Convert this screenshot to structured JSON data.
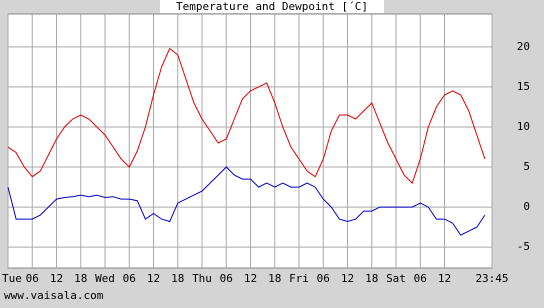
{
  "chart_data": {
    "type": "line",
    "title": "Temperature and Dewpoint [´C]",
    "source": "www.vaisala.com",
    "x": [
      0,
      2,
      4,
      6,
      8,
      10,
      12,
      14,
      16,
      18,
      20,
      22,
      24,
      26,
      28,
      30,
      32,
      34,
      36,
      38,
      40,
      42,
      44,
      46,
      48,
      50,
      52,
      54,
      56,
      58,
      60,
      62,
      64,
      66,
      68,
      70,
      72,
      74,
      76,
      78,
      80,
      82,
      84,
      86,
      88,
      90,
      92,
      94,
      96,
      98,
      100,
      102,
      104,
      106,
      108,
      110,
      112,
      114,
      116,
      118
    ],
    "series": [
      {
        "name": "Temperature",
        "color": "#e00000",
        "values": [
          7.5,
          6.8,
          5,
          3.8,
          4.5,
          6.5,
          8.5,
          10,
          11,
          11.5,
          11,
          10,
          9,
          7.5,
          6,
          5,
          7,
          10,
          14,
          17.5,
          19.8,
          19,
          16,
          13,
          11,
          9.5,
          8,
          8.5,
          11,
          13.5,
          14.5,
          15,
          15.5,
          13,
          10,
          7.5,
          6,
          4.5,
          3.8,
          6,
          9.5,
          11.5,
          11.5,
          11,
          12,
          13,
          10.5,
          8,
          6,
          4,
          3,
          6,
          10,
          12.5,
          14,
          14.5,
          14,
          12,
          9,
          6
        ]
      },
      {
        "name": "Dewpoint",
        "color": "#0000c8",
        "values": [
          2.5,
          -1.5,
          -1.5,
          -1.5,
          -1,
          0,
          1,
          1.2,
          1.3,
          1.5,
          1.3,
          1.5,
          1.2,
          1.3,
          1,
          1,
          0.8,
          -1.5,
          -0.8,
          -1.5,
          -1.8,
          0.5,
          1,
          1.5,
          2,
          3,
          4,
          5,
          4,
          3.5,
          3.5,
          2.5,
          3,
          2.5,
          3,
          2.5,
          2.5,
          3,
          2.5,
          1,
          0,
          -1.5,
          -1.8,
          -1.5,
          -0.5,
          -0.5,
          0,
          0,
          0,
          0,
          0,
          0.5,
          0,
          -1.5,
          -1.5,
          -2,
          -3.5,
          -3,
          -2.5,
          -1
        ]
      }
    ],
    "xlim": [
      0,
      119.75
    ],
    "xticks": [
      {
        "value": 0,
        "label": "Tue"
      },
      {
        "value": 6,
        "label": "06"
      },
      {
        "value": 12,
        "label": "12"
      },
      {
        "value": 18,
        "label": "18"
      },
      {
        "value": 24,
        "label": "Wed"
      },
      {
        "value": 30,
        "label": "06"
      },
      {
        "value": 36,
        "label": "12"
      },
      {
        "value": 42,
        "label": "18"
      },
      {
        "value": 48,
        "label": "Thu"
      },
      {
        "value": 54,
        "label": "06"
      },
      {
        "value": 60,
        "label": "12"
      },
      {
        "value": 66,
        "label": "18"
      },
      {
        "value": 72,
        "label": "Fri"
      },
      {
        "value": 78,
        "label": "06"
      },
      {
        "value": 84,
        "label": "12"
      },
      {
        "value": 90,
        "label": "18"
      },
      {
        "value": 96,
        "label": "Sat"
      },
      {
        "value": 102,
        "label": "06"
      },
      {
        "value": 108,
        "label": "12"
      },
      {
        "value": 119.75,
        "label": "23:45"
      }
    ],
    "ylim": [
      -7.6,
      24.1
    ],
    "yticks": [
      -5,
      0,
      5,
      10,
      15,
      20
    ],
    "grid": true
  }
}
